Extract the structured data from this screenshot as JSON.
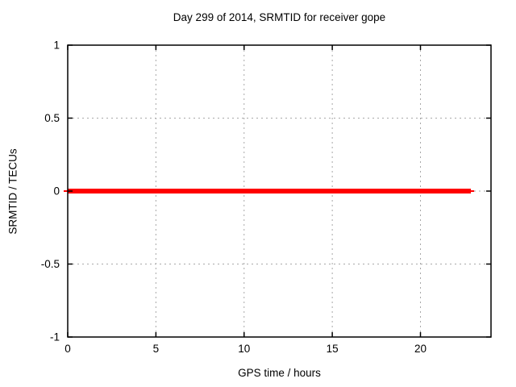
{
  "window": {
    "background_color": "#ffffff"
  },
  "chart_data": {
    "type": "line",
    "title": "Day 299 of 2014, SRMTID for receiver gope",
    "xlabel": "GPS time / hours",
    "ylabel": "SRMTID / TECUs",
    "xlim": [
      0,
      24
    ],
    "ylim": [
      -1,
      1
    ],
    "xticks": [
      0,
      5,
      10,
      15,
      20
    ],
    "yticks": [
      1,
      0.5,
      0,
      -0.5,
      -1
    ],
    "grid": true,
    "grid_color": "#a8a8a8",
    "border_color": "#000000",
    "legend": "none",
    "series": [
      {
        "name": "SRMTID",
        "color": "#ff0000",
        "y": 0,
        "x_start": 0,
        "x_end": 22.86,
        "linewidth": 6,
        "points": [
          [
            0,
            0
          ],
          [
            22.86,
            0
          ]
        ]
      }
    ]
  }
}
